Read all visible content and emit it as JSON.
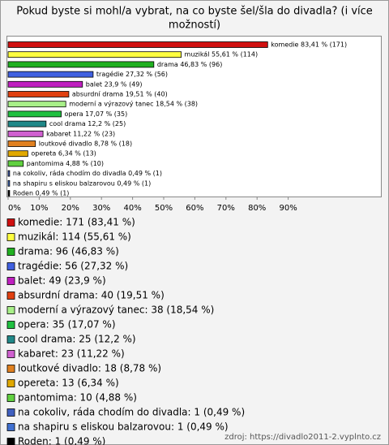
{
  "chart_data": {
    "type": "bar",
    "orientation": "horizontal",
    "title": "Pokud byste si mohl/a vybrat, na co byste šel/šla do divadla? (i více možností)",
    "categories": [
      "komedie",
      "muzikál",
      "drama",
      "tragédie",
      "balet",
      "absurdní drama",
      "moderní a výrazový tanec",
      "opera",
      "cool drama",
      "kabaret",
      "loutkové divadlo",
      "opereta",
      "pantomima",
      "na cokoliv, ráda chodím do divadla",
      "na shapiru s eliskou balzarovou",
      "Roden"
    ],
    "values": [
      83.41,
      55.61,
      46.83,
      27.32,
      23.9,
      19.51,
      18.54,
      17.07,
      12.2,
      11.22,
      8.78,
      6.34,
      4.88,
      0.49,
      0.49,
      0.49
    ],
    "value_labels": [
      "komedie 83,41 % (171)",
      "muzikál 55,61 % (114)",
      "drama 46,83 % (96)",
      "tragédie 27,32 % (56)",
      "balet 23,9 % (49)",
      "absurdní drama 19,51 % (40)",
      "moderní a výrazový tanec 18,54 % (38)",
      "opera 17,07 % (35)",
      "cool drama 12,2 % (25)",
      "kabaret 11,22 % (23)",
      "loutkové divadlo 8,78 % (18)",
      "opereta 6,34 % (13)",
      "pantomima 4,88 % (10)",
      "na cokoliv, ráda chodím do divadla 0,49 % (1)",
      "na shapiru s eliskou balzarovou 0,49 % (1)",
      "Roden 0,49 % (1)"
    ],
    "legend_labels": [
      "komedie: 171 (83,41 %)",
      "muzikál: 114 (55,61 %)",
      "drama: 96 (46,83 %)",
      "tragédie: 56 (27,32 %)",
      "balet: 49 (23,9 %)",
      "absurdní drama: 40 (19,51 %)",
      "moderní a výrazový tanec: 38 (18,54 %)",
      "opera: 35 (17,07 %)",
      "cool drama: 25 (12,2 %)",
      "kabaret: 23 (11,22 %)",
      "loutkové divadlo: 18 (8,78 %)",
      "opereta: 13 (6,34 %)",
      "pantomima: 10 (4,88 %)",
      "na cokoliv, ráda chodím do divadla: 1 (0,49 %)",
      "na shapiru s eliskou balzarovou: 1 (0,49 %)",
      "Roden: 1 (0,49 %)"
    ],
    "colors": [
      "#d01010",
      "#ffff40",
      "#20b020",
      "#4060e0",
      "#c020c0",
      "#e04010",
      "#a8f088",
      "#20c040",
      "#208888",
      "#d060d0",
      "#e08020",
      "#e0a800",
      "#60d040",
      "#4060c0",
      "#4070d0",
      "#000000"
    ],
    "xlim": [
      0,
      100
    ],
    "xticks": [
      {
        "value": 0,
        "label": "0%"
      },
      {
        "value": 10,
        "label": "10%"
      },
      {
        "value": 20,
        "label": "20%"
      },
      {
        "value": 30,
        "label": "30%"
      },
      {
        "value": 40,
        "label": "40%"
      },
      {
        "value": 50,
        "label": "50%"
      },
      {
        "value": 60,
        "label": "60%"
      },
      {
        "value": 70,
        "label": "70%"
      },
      {
        "value": 80,
        "label": "80%"
      },
      {
        "value": 90,
        "label": "90%"
      }
    ],
    "source": "zdroj: https://divadlo2011-2.vyplnto.cz"
  }
}
